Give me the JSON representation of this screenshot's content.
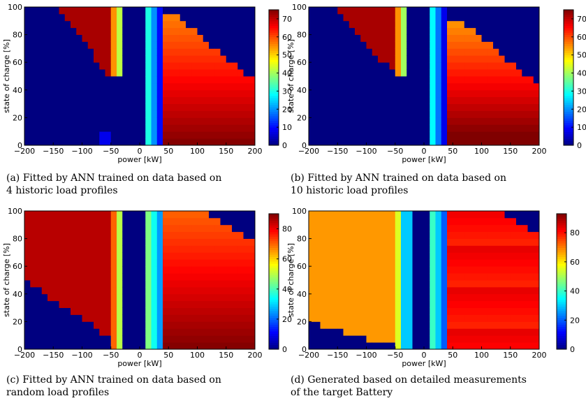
{
  "chart_data": [
    {
      "type": "heatmap",
      "id": "a",
      "caption": "(a) Fitted by ANN trained on data based on\n4 historic load profiles",
      "xlabel": "power [kW]",
      "ylabel": "state of charge [%]",
      "xlim": [
        -200,
        200
      ],
      "ylim": [
        0,
        100
      ],
      "xticks": [
        "−200",
        "−150",
        "−100",
        "−50",
        "0",
        "50",
        "100",
        "150",
        "200"
      ],
      "yticks": [
        "0",
        "20",
        "40",
        "60",
        "80",
        "100"
      ],
      "colorbar": {
        "min": 0,
        "max": 75,
        "ticks": [
          "0",
          "10",
          "20",
          "30",
          "40",
          "50",
          "60",
          "70"
        ]
      },
      "grid": false
    },
    {
      "type": "heatmap",
      "id": "b",
      "caption": "(b) Fitted by ANN trained on data based on\n10 historic load profiles",
      "xlabel": "power [kW]",
      "ylabel": "state of charge [%]",
      "xlim": [
        -200,
        200
      ],
      "ylim": [
        0,
        100
      ],
      "xticks": [
        "−200",
        "−150",
        "−100",
        "−50",
        "0",
        "50",
        "100",
        "150",
        "200"
      ],
      "yticks": [
        "0",
        "20",
        "40",
        "60",
        "80",
        "100"
      ],
      "colorbar": {
        "min": 0,
        "max": 75,
        "ticks": [
          "0",
          "10",
          "20",
          "30",
          "40",
          "50",
          "60",
          "70"
        ]
      },
      "grid": false
    },
    {
      "type": "heatmap",
      "id": "c",
      "caption": "(c) Fitted by ANN trained on data based on\nrandom load profiles",
      "xlabel": "power [kW]",
      "ylabel": "state of charge [%]",
      "xlim": [
        -200,
        200
      ],
      "ylim": [
        0,
        100
      ],
      "xticks": [
        "−200",
        "−150",
        "−100",
        "−50",
        "0",
        "50",
        "100",
        "150",
        "200"
      ],
      "yticks": [
        "0",
        "20",
        "40",
        "60",
        "80",
        "100"
      ],
      "colorbar": {
        "min": 0,
        "max": 90,
        "ticks": [
          "0",
          "20",
          "40",
          "60",
          "80"
        ]
      },
      "grid": false
    },
    {
      "type": "heatmap",
      "id": "d",
      "caption": "(d) Generated based on detailed measurements\nof the target Battery",
      "xlabel": "power [kW]",
      "ylabel": "state of charge [%]",
      "xlim": [
        -200,
        200
      ],
      "ylim": [
        0,
        100
      ],
      "xticks": [
        "−200",
        "−150",
        "−100",
        "−50",
        "0",
        "50",
        "100",
        "150",
        "200"
      ],
      "yticks": [
        "0",
        "20",
        "40",
        "60",
        "80",
        "100"
      ],
      "colorbar": {
        "min": 0,
        "max": 93,
        "ticks": [
          "0",
          "20",
          "40",
          "60",
          "80"
        ]
      },
      "grid": false
    }
  ]
}
